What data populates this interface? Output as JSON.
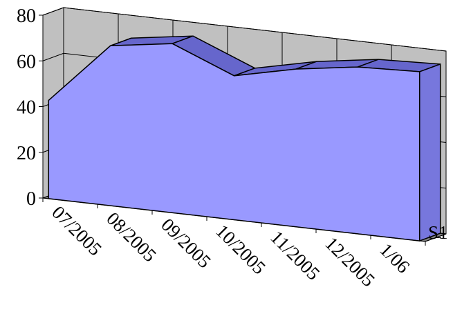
{
  "chart_data": {
    "type": "area",
    "title": "",
    "xlabel": "",
    "ylabel": "",
    "ylim": [
      0,
      80
    ],
    "yticks": [
      0,
      20,
      40,
      60,
      80
    ],
    "categories": [
      "07/2005",
      "08/2005",
      "09/2005",
      "10/2005",
      "11/2005",
      "12/2005",
      "1/06"
    ],
    "series": [
      {
        "name": "S1",
        "values": [
          43,
          70,
          74,
          63,
          69,
          73,
          74
        ]
      }
    ],
    "grid": true,
    "perspective": "3d",
    "legend": "none",
    "colors": {
      "area_front": "#9999ff",
      "area_top": "#6666cc",
      "area_side": "#7777dd",
      "walls": "#c0c0c0",
      "floor": "#808080",
      "grid": "#000000"
    }
  }
}
